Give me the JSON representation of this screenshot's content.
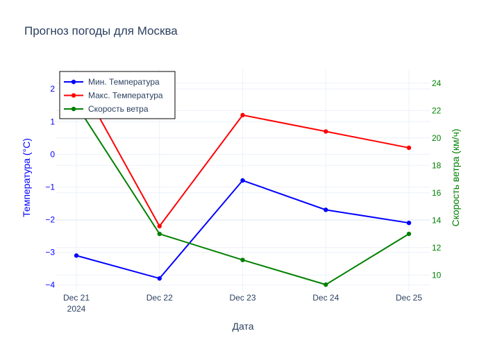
{
  "chart_data": {
    "type": "line",
    "title": "Прогноз погоды для Москва",
    "xlabel": "Дата",
    "ylabel": "Температура (°C)",
    "y2label": "Скорость ветра (км/ч)",
    "categories": [
      "Dec 21",
      "Dec 22",
      "Dec 23",
      "Dec 24",
      "Dec 25"
    ],
    "x_year_label": "2024",
    "ylim": [
      -4.2,
      2.6
    ],
    "yticks": [
      -4,
      -3,
      -2,
      -1,
      0,
      1,
      2
    ],
    "y2lim": [
      8.8,
      25.0
    ],
    "y2ticks": [
      10,
      12,
      14,
      16,
      18,
      20,
      22,
      24
    ],
    "grid": true,
    "legend_position": "top-left",
    "series": [
      {
        "name": "Мин. Температура",
        "axis": "y",
        "color": "#0000ff",
        "values": [
          -3.1,
          -3.8,
          -0.8,
          -1.7,
          -2.1
        ]
      },
      {
        "name": "Макс. Температура",
        "axis": "y",
        "color": "#ff0000",
        "values": [
          2.4,
          -2.2,
          1.2,
          0.7,
          0.2
        ]
      },
      {
        "name": "Скорость ветра",
        "axis": "y2",
        "color": "#008000",
        "values": [
          22.4,
          13.0,
          11.1,
          9.3,
          13.0
        ]
      }
    ],
    "colors": {
      "left_axis": "#0000ff",
      "right_axis": "#008000",
      "text": "#2a3f5f",
      "grid": "#ebf0f8"
    }
  }
}
